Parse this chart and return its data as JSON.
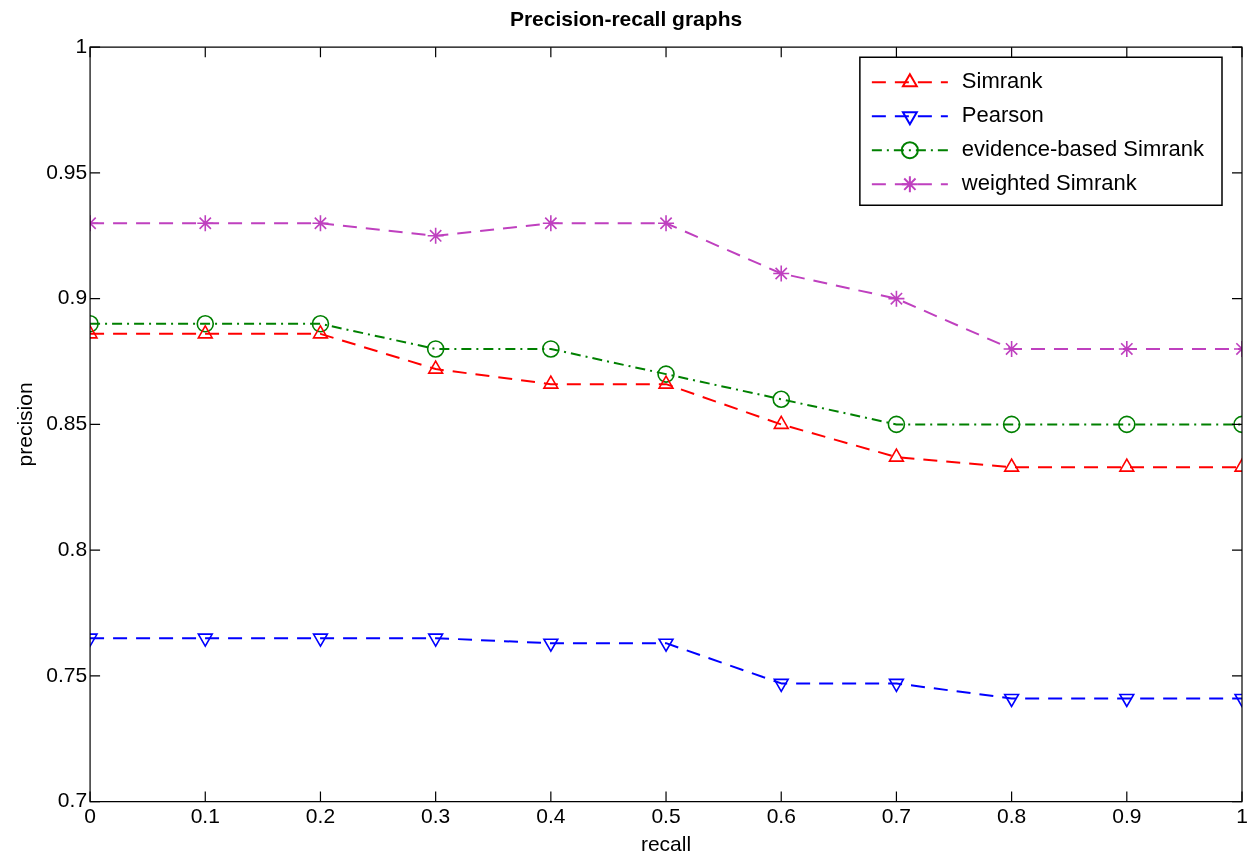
{
  "chart_data": {
    "type": "line",
    "title": "Precision-recall graphs",
    "xlabel": "recall",
    "ylabel": "precision",
    "x": [
      0,
      0.1,
      0.2,
      0.3,
      0.4,
      0.5,
      0.6,
      0.7,
      0.8,
      0.9,
      1
    ],
    "xlim": [
      0,
      1
    ],
    "xticks": [
      0,
      0.1,
      0.2,
      0.3,
      0.4,
      0.5,
      0.6,
      0.7,
      0.8,
      0.9,
      1
    ],
    "ylim": [
      0.7,
      1
    ],
    "yticks": [
      0.7,
      0.75,
      0.8,
      0.85,
      0.9,
      0.95,
      1
    ],
    "grid": false,
    "legend": "top right",
    "series": [
      {
        "name": "Simrank",
        "color": "#ff0000",
        "marker": "triangle",
        "line_style": "dashed",
        "values": [
          0.886,
          0.886,
          0.886,
          0.872,
          0.866,
          0.866,
          0.85,
          0.837,
          0.833,
          0.833,
          0.833
        ]
      },
      {
        "name": "Pearson",
        "color": "#0000ff",
        "marker": "triangle-down",
        "line_style": "dashed",
        "values": [
          0.765,
          0.765,
          0.765,
          0.765,
          0.763,
          0.763,
          0.747,
          0.747,
          0.741,
          0.741,
          0.741
        ]
      },
      {
        "name": "evidence-based Simrank",
        "color": "#008000",
        "marker": "circle",
        "line_style": "dashdot",
        "values": [
          0.89,
          0.89,
          0.89,
          0.88,
          0.88,
          0.87,
          0.86,
          0.85,
          0.85,
          0.85,
          0.85
        ]
      },
      {
        "name": "weighted Simrank",
        "color": "#bf40bf",
        "marker": "cross",
        "line_style": "dashed",
        "values": [
          0.93,
          0.93,
          0.93,
          0.925,
          0.93,
          0.93,
          0.91,
          0.9,
          0.88,
          0.88,
          0.88
        ]
      }
    ]
  }
}
